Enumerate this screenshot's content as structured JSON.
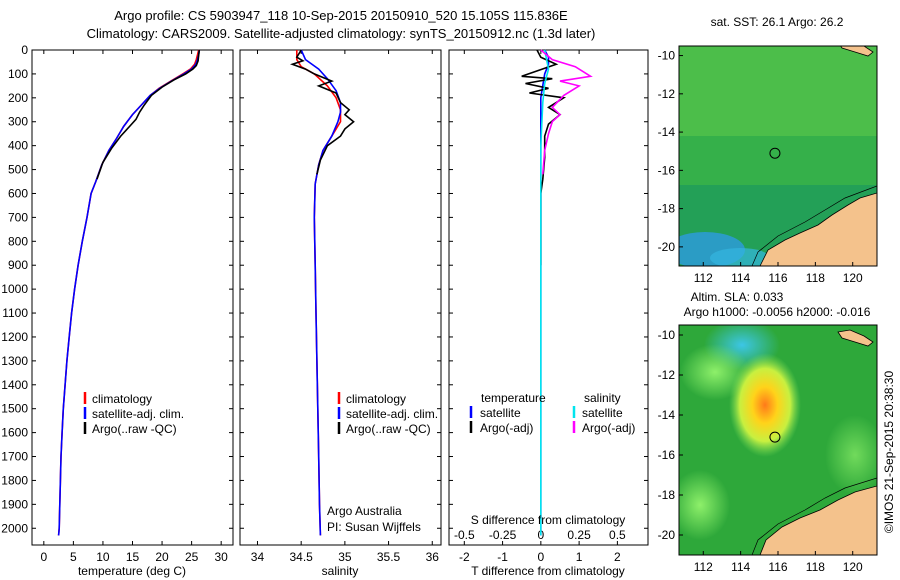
{
  "header": {
    "line1": "Argo profile: CS 5903947_118 10-Sep-2015 20150910_520 15.105S 115.836E",
    "line2": "Climatology: CARS2009. Satellite-adjusted climatology: synTS_20150912.nc (1.3d later)"
  },
  "footer": {
    "credit": "©IMOS 21-Sep-2015 20:38:30"
  },
  "colors": {
    "climatology": "#ff0000",
    "satellite": "#0000ff",
    "argo": "#000000",
    "s_satellite": "#00e5ee",
    "s_argo": "#ff00ff",
    "land": "#f4c28c",
    "map_green": "#2ea83a"
  },
  "chart_data": [
    {
      "type": "line",
      "panel": "temperature",
      "xlabel": "temperature (deg C)",
      "ylabel": "",
      "xlim": [
        -2,
        32
      ],
      "ylim": [
        2070,
        0
      ],
      "xticks": [
        0,
        5,
        10,
        15,
        20,
        25,
        30
      ],
      "yticks": [
        0,
        100,
        200,
        300,
        400,
        500,
        600,
        700,
        800,
        900,
        1000,
        1100,
        1200,
        1300,
        1400,
        1500,
        1600,
        1700,
        1800,
        1900,
        2000
      ],
      "legend": [
        "climatology",
        "satellite-adj. clim.",
        "Argo(..raw -QC)"
      ],
      "series": [
        {
          "name": "climatology",
          "color": "#ff0000",
          "points": [
            [
              26.2,
              0
            ],
            [
              26.0,
              20
            ],
            [
              25.8,
              40
            ],
            [
              25.5,
              60
            ],
            [
              24.8,
              80
            ],
            [
              23.5,
              100
            ],
            [
              21.5,
              130
            ],
            [
              19.5,
              160
            ],
            [
              18.0,
              190
            ],
            [
              16.5,
              230
            ],
            [
              15.0,
              270
            ],
            [
              13.5,
              320
            ],
            [
              12.3,
              370
            ],
            [
              11.0,
              420
            ],
            [
              9.8,
              480
            ],
            [
              8.8,
              550
            ],
            [
              8.0,
              600
            ],
            [
              7.3,
              700
            ],
            [
              6.5,
              800
            ],
            [
              5.8,
              900
            ],
            [
              5.2,
              1000
            ],
            [
              4.7,
              1100
            ],
            [
              4.3,
              1200
            ],
            [
              3.9,
              1300
            ],
            [
              3.6,
              1400
            ],
            [
              3.3,
              1500
            ],
            [
              3.1,
              1600
            ],
            [
              2.9,
              1700
            ],
            [
              2.8,
              1800
            ],
            [
              2.7,
              1900
            ],
            [
              2.6,
              2000
            ],
            [
              2.5,
              2030
            ]
          ]
        },
        {
          "name": "satellite-adj. clim.",
          "color": "#0000ff",
          "points": [
            [
              26.3,
              0
            ],
            [
              26.2,
              20
            ],
            [
              26.0,
              40
            ],
            [
              25.7,
              60
            ],
            [
              25.0,
              80
            ],
            [
              23.7,
              100
            ],
            [
              21.6,
              130
            ],
            [
              19.6,
              160
            ],
            [
              18.0,
              190
            ],
            [
              16.5,
              230
            ],
            [
              15.0,
              270
            ],
            [
              13.5,
              320
            ],
            [
              12.3,
              370
            ],
            [
              11.0,
              420
            ],
            [
              9.8,
              480
            ],
            [
              8.8,
              550
            ],
            [
              8.0,
              600
            ],
            [
              7.3,
              700
            ],
            [
              6.5,
              800
            ],
            [
              5.8,
              900
            ],
            [
              5.2,
              1000
            ],
            [
              4.7,
              1100
            ],
            [
              4.3,
              1200
            ],
            [
              3.9,
              1300
            ],
            [
              3.6,
              1400
            ],
            [
              3.3,
              1500
            ],
            [
              3.1,
              1600
            ],
            [
              2.9,
              1700
            ],
            [
              2.8,
              1800
            ],
            [
              2.7,
              1900
            ],
            [
              2.6,
              2000
            ],
            [
              2.5,
              2030
            ]
          ]
        },
        {
          "name": "Argo(..raw -QC)",
          "color": "#000000",
          "points": [
            [
              26.3,
              0
            ],
            [
              26.2,
              20
            ],
            [
              26.1,
              45
            ],
            [
              25.8,
              65
            ],
            [
              25.2,
              80
            ],
            [
              24.0,
              100
            ],
            [
              22.0,
              125
            ],
            [
              20.0,
              155
            ],
            [
              18.2,
              190
            ],
            [
              17.0,
              230
            ],
            [
              16.2,
              260
            ],
            [
              15.6,
              290
            ],
            [
              14.5,
              320
            ],
            [
              13.0,
              360
            ],
            [
              11.5,
              410
            ],
            [
              10.0,
              470
            ],
            [
              9.0,
              540
            ]
          ]
        }
      ]
    },
    {
      "type": "line",
      "panel": "salinity",
      "xlabel": "salinity",
      "ylabel": "",
      "xlim": [
        33.8,
        36.1
      ],
      "ylim": [
        2070,
        0
      ],
      "xticks": [
        34,
        34.5,
        35,
        35.5,
        36
      ],
      "legend": [
        "climatology",
        "satellite-adj. clim.",
        "Argo(..raw -QC)"
      ],
      "annotation": [
        "Argo Australia",
        "PI: Susan Wijffels"
      ],
      "series": [
        {
          "name": "climatology",
          "color": "#ff0000",
          "points": [
            [
              34.45,
              0
            ],
            [
              34.45,
              40
            ],
            [
              34.5,
              70
            ],
            [
              34.65,
              100
            ],
            [
              34.8,
              150
            ],
            [
              34.9,
              200
            ],
            [
              34.95,
              250
            ],
            [
              34.95,
              300
            ],
            [
              34.85,
              360
            ],
            [
              34.75,
              420
            ],
            [
              34.7,
              480
            ],
            [
              34.66,
              560
            ],
            [
              34.65,
              700
            ],
            [
              34.66,
              900
            ],
            [
              34.67,
              1100
            ],
            [
              34.68,
              1300
            ],
            [
              34.69,
              1500
            ],
            [
              34.7,
              1700
            ],
            [
              34.71,
              1900
            ],
            [
              34.72,
              2030
            ]
          ]
        },
        {
          "name": "satellite-adj. clim.",
          "color": "#0000ff",
          "points": [
            [
              34.5,
              0
            ],
            [
              34.55,
              40
            ],
            [
              34.7,
              80
            ],
            [
              34.8,
              120
            ],
            [
              34.9,
              170
            ],
            [
              34.95,
              220
            ],
            [
              34.95,
              260
            ],
            [
              34.92,
              300
            ],
            [
              34.85,
              360
            ],
            [
              34.75,
              420
            ],
            [
              34.7,
              480
            ],
            [
              34.66,
              560
            ],
            [
              34.65,
              700
            ],
            [
              34.66,
              900
            ],
            [
              34.67,
              1100
            ],
            [
              34.68,
              1300
            ],
            [
              34.69,
              1500
            ],
            [
              34.7,
              1700
            ],
            [
              34.71,
              1900
            ],
            [
              34.72,
              2030
            ]
          ]
        },
        {
          "name": "Argo(..raw -QC)",
          "color": "#000000",
          "points": [
            [
              34.5,
              0
            ],
            [
              34.45,
              30
            ],
            [
              34.52,
              45
            ],
            [
              34.4,
              60
            ],
            [
              34.55,
              80
            ],
            [
              34.65,
              100
            ],
            [
              34.85,
              130
            ],
            [
              34.7,
              150
            ],
            [
              34.9,
              180
            ],
            [
              34.95,
              220
            ],
            [
              35.05,
              250
            ],
            [
              35.0,
              270
            ],
            [
              35.1,
              300
            ],
            [
              35.0,
              330
            ],
            [
              34.95,
              360
            ],
            [
              34.8,
              400
            ],
            [
              34.72,
              460
            ],
            [
              34.68,
              520
            ]
          ]
        }
      ]
    },
    {
      "type": "line",
      "panel": "difference",
      "xlabel": "T difference from climatology",
      "xlabel2": "S difference from climatology",
      "xlim": [
        -2.4,
        2.8
      ],
      "ylim": [
        2070,
        0
      ],
      "xticks": [
        -2,
        -1,
        0,
        1,
        2
      ],
      "xticks2": [
        -0.5,
        -0.25,
        0,
        0.25,
        0.5
      ],
      "legend_headers": [
        "temperature",
        "salinity"
      ],
      "legend": [
        "satellite",
        "Argo(-adj)",
        "satellite",
        "Argo(-adj)"
      ],
      "series": [
        {
          "name": "T satellite",
          "color": "#0000ff",
          "points": [
            [
              0.1,
              0
            ],
            [
              0.2,
              30
            ],
            [
              0.2,
              60
            ],
            [
              0.1,
              100
            ],
            [
              0.0,
              200
            ],
            [
              0.0,
              400
            ],
            [
              0.0,
              800
            ],
            [
              0.0,
              2030
            ]
          ]
        },
        {
          "name": "T Argo(-adj)",
          "color": "#000000",
          "points": [
            [
              -0.1,
              0
            ],
            [
              0.0,
              30
            ],
            [
              0.4,
              60
            ],
            [
              -0.5,
              110
            ],
            [
              0.3,
              120
            ],
            [
              -0.4,
              140
            ],
            [
              0.2,
              160
            ],
            [
              -0.3,
              180
            ],
            [
              0.6,
              200
            ],
            [
              0.2,
              240
            ],
            [
              0.5,
              270
            ],
            [
              0.2,
              310
            ],
            [
              0.1,
              360
            ],
            [
              0.1,
              450
            ],
            [
              0.05,
              540
            ],
            [
              0.0,
              600
            ],
            [
              0.0,
              900
            ]
          ]
        },
        {
          "name": "S satellite",
          "color": "#00e5ee",
          "points": [
            [
              0.1,
              0
            ],
            [
              0.15,
              40
            ],
            [
              0.2,
              80
            ],
            [
              0.1,
              140
            ],
            [
              0.05,
              220
            ],
            [
              0.0,
              400
            ],
            [
              0.0,
              800
            ],
            [
              0.0,
              2030
            ]
          ]
        },
        {
          "name": "S Argo(-adj)",
          "color": "#ff00ff",
          "points": [
            [
              0.0,
              0
            ],
            [
              0.3,
              40
            ],
            [
              0.9,
              70
            ],
            [
              1.3,
              110
            ],
            [
              0.5,
              130
            ],
            [
              1.0,
              150
            ],
            [
              0.6,
              190
            ],
            [
              0.3,
              240
            ],
            [
              0.5,
              270
            ],
            [
              0.3,
              300
            ],
            [
              0.2,
              350
            ],
            [
              0.1,
              420
            ],
            [
              0.05,
              520
            ]
          ]
        }
      ]
    },
    {
      "type": "heatmap",
      "panel": "sst-map",
      "title": "sat. SST: 26.1  Argo: 26.2",
      "xlim": [
        110.7,
        121.3
      ],
      "ylim": [
        -21.0,
        -9.5
      ],
      "xticks": [
        112,
        114,
        116,
        118,
        120
      ],
      "yticks": [
        -10,
        -12,
        -14,
        -16,
        -18,
        -20
      ],
      "marker": {
        "lon": 115.836,
        "lat": -15.105
      }
    },
    {
      "type": "heatmap",
      "panel": "sla-map",
      "title": "Altim. SLA: 0.033",
      "subtitle": "Argo h1000: -0.0056  h2000: -0.016",
      "xlim": [
        110.7,
        121.3
      ],
      "ylim": [
        -21.0,
        -9.5
      ],
      "xticks": [
        112,
        114,
        116,
        118,
        120
      ],
      "yticks": [
        -10,
        -12,
        -14,
        -16,
        -18,
        -20
      ],
      "marker": {
        "lon": 115.836,
        "lat": -15.105
      }
    }
  ]
}
